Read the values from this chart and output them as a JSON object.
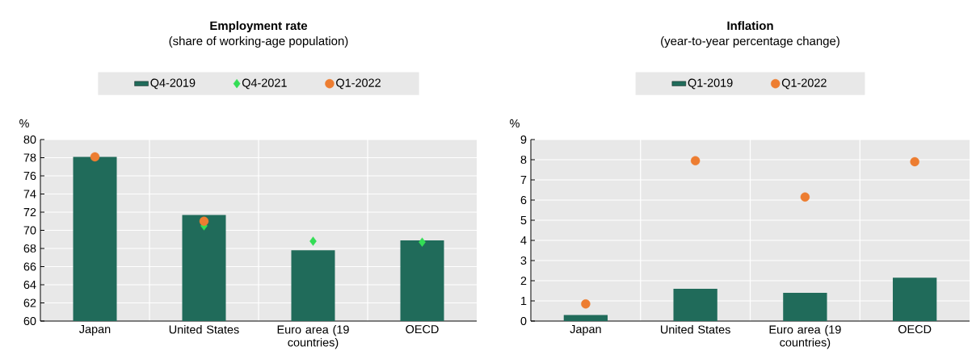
{
  "chart_data": [
    {
      "type": "bar",
      "title": "Employment rate",
      "subtitle": "(share of working-age population)",
      "ylabel": "%",
      "categories": [
        "Japan",
        "United States",
        "Euro area (19 countries)",
        "OECD"
      ],
      "series": [
        {
          "name": "Q4-2019",
          "color": "#206b5a",
          "values": [
            78.1,
            71.7,
            67.8,
            68.9
          ]
        },
        {
          "name": "Q4-2021",
          "type": "scatter",
          "marker": "diamond",
          "color": "#33dd55",
          "values": [
            null,
            70.5,
            68.8,
            68.7
          ]
        },
        {
          "name": "Q1-2022",
          "type": "scatter",
          "marker": "circle",
          "color": "#ed7d31",
          "values": [
            78.1,
            71.0,
            null,
            null
          ]
        }
      ],
      "ylim": [
        60,
        80
      ],
      "yticks": [
        60,
        62,
        64,
        66,
        68,
        70,
        72,
        74,
        76,
        78,
        80
      ],
      "grid": true,
      "legend": "top"
    },
    {
      "type": "bar",
      "title": "Inflation",
      "subtitle": "(year-to-year percentage change)",
      "ylabel": "%",
      "categories": [
        "Japan",
        "United States",
        "Euro area (19 countries)",
        "OECD"
      ],
      "series": [
        {
          "name": "Q1-2019",
          "color": "#206b5a",
          "values": [
            0.3,
            1.6,
            1.4,
            2.15
          ]
        },
        {
          "name": "Q1-2022",
          "type": "scatter",
          "marker": "circle",
          "color": "#ed7d31",
          "values": [
            0.85,
            7.95,
            6.15,
            7.9
          ]
        }
      ],
      "ylim": [
        0,
        9
      ],
      "yticks": [
        0,
        1,
        2,
        3,
        4,
        5,
        6,
        7,
        8,
        9
      ],
      "grid": true,
      "legend": "top"
    }
  ]
}
